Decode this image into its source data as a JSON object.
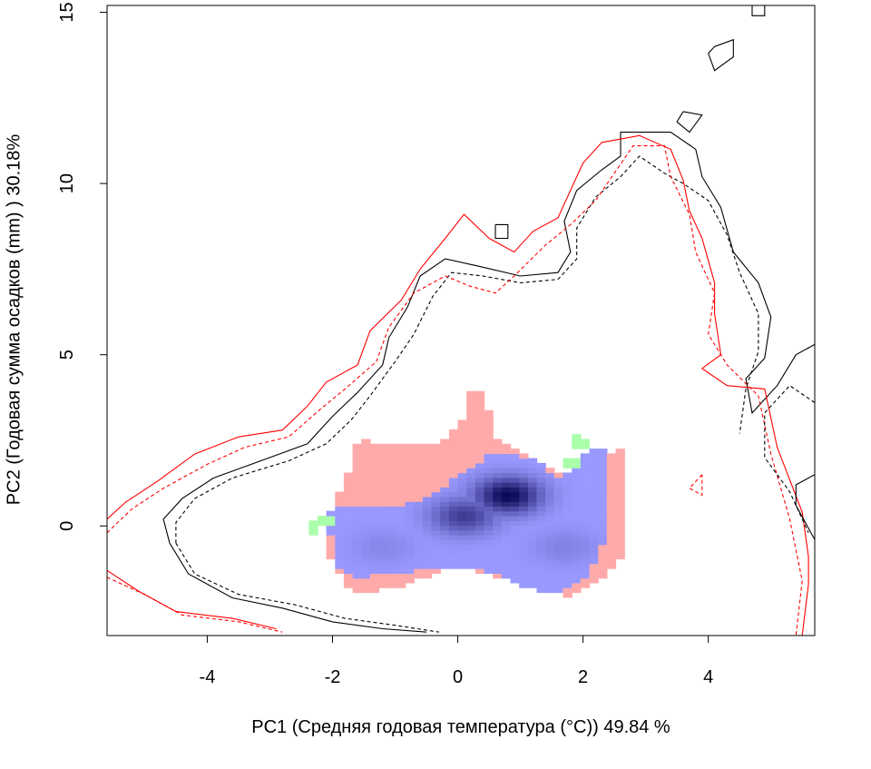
{
  "chart_data": {
    "type": "heatmap",
    "title": "",
    "xlabel": "PC1 (Средняя годовая температура (°C)) 49.84 %",
    "ylabel": "PC2 (Годовая сумма осадков  (mm) ) 30.18%",
    "xlim": [
      -5.6,
      5.7
    ],
    "ylim": [
      -3.2,
      15.2
    ],
    "x_ticks": [
      "-4",
      "-2",
      "0",
      "2",
      "4"
    ],
    "y_ticks": [
      "0",
      "5",
      "10",
      "15"
    ],
    "grid": false,
    "legend": "none",
    "colors": {
      "overlap_low": "#9999ff",
      "overlap_high": "#00004d",
      "species_1_only": "#ffaaaa",
      "species_2_only": "#aaffaa",
      "contour_species_1": "#ff0000",
      "contour_species_2": "#000000"
    },
    "density_peaks": [
      {
        "x": 0.8,
        "y": 0.9,
        "intensity": 1.0
      },
      {
        "x": 0.1,
        "y": 0.3,
        "intensity": 0.8
      },
      {
        "x": -1.2,
        "y": -0.6,
        "intensity": 0.35
      },
      {
        "x": 1.7,
        "y": -0.6,
        "intensity": 0.4
      }
    ],
    "series": [
      {
        "line": "solid",
        "color": "#000000",
        "points": [
          [
            -4.6,
            -0.5
          ],
          [
            -4.7,
            0.2
          ],
          [
            -4.4,
            0.8
          ],
          [
            -3.9,
            1.4
          ],
          [
            -3.0,
            2.0
          ],
          [
            -2.4,
            2.4
          ],
          [
            -2.0,
            3.2
          ],
          [
            -1.6,
            3.9
          ],
          [
            -1.2,
            4.7
          ],
          [
            -1.1,
            5.5
          ],
          [
            -0.8,
            6.4
          ],
          [
            -0.6,
            7.3
          ],
          [
            -0.2,
            7.8
          ],
          [
            0.3,
            7.6
          ],
          [
            1.0,
            7.3
          ],
          [
            1.6,
            7.4
          ],
          [
            1.8,
            8.0
          ],
          [
            1.7,
            8.9
          ],
          [
            1.9,
            9.8
          ],
          [
            2.3,
            10.4
          ],
          [
            2.6,
            10.8
          ],
          [
            2.6,
            11.5
          ],
          [
            3.4,
            11.5
          ],
          [
            3.8,
            11.0
          ],
          [
            3.9,
            10.2
          ],
          [
            4.2,
            9.3
          ],
          [
            4.4,
            8.0
          ],
          [
            4.8,
            7.1
          ],
          [
            5.0,
            6.1
          ],
          [
            4.9,
            4.9
          ],
          [
            4.6,
            4.3
          ],
          [
            4.7,
            3.3
          ],
          [
            5.1,
            4.1
          ],
          [
            5.4,
            5.0
          ],
          [
            5.7,
            5.3
          ]
        ]
      },
      {
        "line": "solid",
        "color": "#000000",
        "points": [
          [
            -4.6,
            -0.5
          ],
          [
            -4.3,
            -1.4
          ],
          [
            -3.6,
            -2.1
          ],
          [
            -2.8,
            -2.4
          ],
          [
            -2.0,
            -2.8
          ],
          [
            -1.2,
            -3.0
          ],
          [
            -0.5,
            -3.1
          ]
        ]
      },
      {
        "line": "dashed",
        "color": "#000000",
        "points": [
          [
            -4.5,
            -0.5
          ],
          [
            -4.5,
            0.1
          ],
          [
            -4.2,
            0.8
          ],
          [
            -3.6,
            1.4
          ],
          [
            -2.7,
            1.9
          ],
          [
            -2.1,
            2.4
          ],
          [
            -1.7,
            3.1
          ],
          [
            -1.4,
            3.8
          ],
          [
            -1.0,
            4.8
          ],
          [
            -0.7,
            5.6
          ],
          [
            -0.4,
            6.7
          ],
          [
            -0.1,
            7.4
          ],
          [
            0.4,
            7.3
          ],
          [
            1.0,
            7.1
          ],
          [
            1.6,
            7.2
          ],
          [
            1.9,
            7.8
          ],
          [
            1.9,
            8.7
          ],
          [
            2.2,
            9.6
          ],
          [
            2.6,
            10.2
          ],
          [
            2.9,
            10.8
          ],
          [
            3.3,
            10.3
          ],
          [
            3.6,
            10.0
          ],
          [
            4.0,
            9.5
          ],
          [
            4.3,
            8.5
          ],
          [
            4.5,
            7.4
          ],
          [
            4.8,
            6.2
          ],
          [
            4.8,
            5.1
          ],
          [
            4.6,
            4.0
          ],
          [
            4.5,
            2.7
          ]
        ]
      },
      {
        "line": "dashed",
        "color": "#000000",
        "points": [
          [
            -4.5,
            -0.5
          ],
          [
            -4.2,
            -1.4
          ],
          [
            -3.5,
            -2.0
          ],
          [
            -2.6,
            -2.3
          ],
          [
            -1.8,
            -2.7
          ],
          [
            -1.0,
            -2.9
          ],
          [
            -0.3,
            -3.1
          ]
        ]
      },
      {
        "line": "solid",
        "color": "#ff0000",
        "points": [
          [
            -5.6,
            0.2
          ],
          [
            -5.3,
            0.7
          ],
          [
            -4.8,
            1.3
          ],
          [
            -4.2,
            2.1
          ],
          [
            -3.5,
            2.6
          ],
          [
            -2.8,
            2.8
          ],
          [
            -2.4,
            3.5
          ],
          [
            -2.1,
            4.2
          ],
          [
            -1.6,
            4.7
          ],
          [
            -1.4,
            5.7
          ],
          [
            -0.9,
            6.6
          ],
          [
            -0.6,
            7.5
          ],
          [
            -0.2,
            8.4
          ],
          [
            0.1,
            9.1
          ],
          [
            0.5,
            8.4
          ],
          [
            0.9,
            8.0
          ],
          [
            1.2,
            8.6
          ],
          [
            1.6,
            9.0
          ],
          [
            1.8,
            9.8
          ],
          [
            2.0,
            10.6
          ],
          [
            2.3,
            11.2
          ],
          [
            2.9,
            11.4
          ],
          [
            3.4,
            11.0
          ],
          [
            3.6,
            10.1
          ],
          [
            3.7,
            9.2
          ],
          [
            3.9,
            8.4
          ],
          [
            4.1,
            7.1
          ],
          [
            4.1,
            6.2
          ],
          [
            4.2,
            5.0
          ],
          [
            3.9,
            4.6
          ],
          [
            4.3,
            4.1
          ],
          [
            4.9,
            4.0
          ],
          [
            5.1,
            2.3
          ],
          [
            5.5,
            0.4
          ],
          [
            5.6,
            -0.9
          ],
          [
            5.6,
            -1.7
          ],
          [
            5.5,
            -3.2
          ]
        ]
      },
      {
        "line": "solid",
        "color": "#ff0000",
        "points": [
          [
            -5.6,
            -1.3
          ],
          [
            -5.1,
            -1.9
          ],
          [
            -4.5,
            -2.5
          ],
          [
            -3.6,
            -2.7
          ],
          [
            -2.9,
            -3.0
          ]
        ]
      },
      {
        "line": "dashed",
        "color": "#ff0000",
        "points": [
          [
            -5.6,
            -0.2
          ],
          [
            -5.2,
            0.5
          ],
          [
            -4.7,
            1.1
          ],
          [
            -4.0,
            1.8
          ],
          [
            -3.4,
            2.3
          ],
          [
            -2.7,
            2.6
          ],
          [
            -2.2,
            3.4
          ],
          [
            -1.8,
            4.0
          ],
          [
            -1.3,
            4.8
          ],
          [
            -1.1,
            5.8
          ],
          [
            -0.7,
            6.8
          ],
          [
            -0.2,
            7.3
          ],
          [
            0.2,
            7.0
          ],
          [
            0.6,
            6.8
          ],
          [
            0.9,
            7.3
          ],
          [
            1.4,
            8.2
          ],
          [
            1.8,
            8.8
          ],
          [
            2.2,
            9.5
          ],
          [
            2.5,
            10.3
          ],
          [
            2.8,
            11.1
          ],
          [
            3.3,
            11.1
          ],
          [
            3.4,
            10.2
          ],
          [
            3.7,
            9.1
          ],
          [
            3.8,
            8.0
          ],
          [
            4.1,
            6.8
          ],
          [
            4.0,
            5.6
          ],
          [
            4.3,
            4.7
          ],
          [
            4.8,
            3.8
          ],
          [
            5.0,
            2.1
          ],
          [
            5.3,
            0.2
          ],
          [
            5.5,
            -1.6
          ],
          [
            5.4,
            -3.2
          ]
        ]
      },
      {
        "line": "dashed",
        "color": "#ff0000",
        "points": [
          [
            -5.6,
            -1.5
          ],
          [
            -5.0,
            -2.0
          ],
          [
            -4.4,
            -2.6
          ],
          [
            -3.5,
            -2.8
          ],
          [
            -2.8,
            -3.1
          ]
        ]
      },
      {
        "line": "solid",
        "color": "#000000",
        "points": [
          [
            5.7,
            1.5
          ],
          [
            5.4,
            1.2
          ],
          [
            5.4,
            0.6
          ],
          [
            5.7,
            -0.4
          ]
        ]
      },
      {
        "line": "dashed",
        "color": "#000000",
        "points": [
          [
            5.7,
            3.6
          ],
          [
            5.3,
            4.1
          ],
          [
            4.9,
            3.3
          ],
          [
            4.9,
            2.0
          ],
          [
            5.3,
            1.0
          ],
          [
            5.6,
            -0.2
          ]
        ]
      },
      {
        "line": "dashed",
        "color": "#ff0000",
        "points": [
          [
            3.9,
            1.5
          ],
          [
            3.7,
            1.1
          ],
          [
            3.9,
            0.9
          ],
          [
            3.9,
            1.5
          ]
        ]
      },
      {
        "line": "solid",
        "color": "#000000",
        "points": [
          [
            3.6,
            12.1
          ],
          [
            3.9,
            12.0
          ],
          [
            3.7,
            11.5
          ],
          [
            3.5,
            11.8
          ],
          [
            3.6,
            12.1
          ]
        ]
      },
      {
        "line": "solid",
        "color": "#000000",
        "points": [
          [
            4.1,
            14.0
          ],
          [
            4.4,
            14.2
          ],
          [
            4.4,
            13.7
          ],
          [
            4.1,
            13.3
          ],
          [
            4.0,
            13.8
          ],
          [
            4.1,
            14.0
          ]
        ]
      },
      {
        "line": "solid",
        "color": "#000000",
        "points": [
          [
            0.6,
            8.8
          ],
          [
            0.8,
            8.8
          ],
          [
            0.8,
            8.4
          ],
          [
            0.6,
            8.4
          ],
          [
            0.6,
            8.8
          ]
        ]
      },
      {
        "line": "solid",
        "color": "#000000",
        "points": [
          [
            4.7,
            15.2
          ],
          [
            4.7,
            14.9
          ],
          [
            4.9,
            14.9
          ],
          [
            4.9,
            15.2
          ]
        ]
      }
    ]
  }
}
